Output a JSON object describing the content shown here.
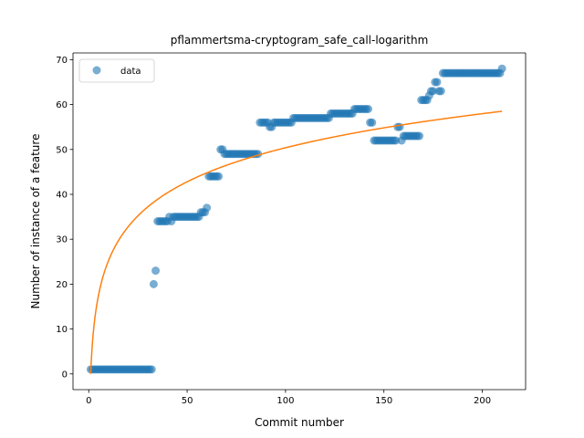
{
  "chart_data": {
    "type": "scatter",
    "title": "pflammertsma-cryptogram_safe_call-logarithm",
    "xlabel": "Commit number",
    "ylabel": "Number of instance of a feature",
    "xlim": [
      -8,
      222
    ],
    "ylim": [
      -3.5,
      71.5
    ],
    "xticks": [
      0,
      50,
      100,
      150,
      200
    ],
    "yticks": [
      0,
      10,
      20,
      30,
      40,
      50,
      60,
      70
    ],
    "grid": false,
    "legend": {
      "placement": "top-left",
      "entries": [
        "data"
      ]
    },
    "colors": {
      "data": "#1f77b4",
      "fit": "#ff7f0e"
    },
    "series": [
      {
        "name": "data",
        "kind": "scatter",
        "segments": [
          {
            "x_start": 1,
            "x_end": 32,
            "y": 1
          },
          {
            "x_start": 33,
            "x_end": 33,
            "y": 20
          },
          {
            "x_start": 34,
            "x_end": 34,
            "y": 23
          },
          {
            "x_start": 35,
            "x_end": 40,
            "y": 34
          },
          {
            "x_start": 41,
            "x_end": 41,
            "y": 35
          },
          {
            "x_start": 42,
            "x_end": 42,
            "y": 34
          },
          {
            "x_start": 43,
            "x_end": 56,
            "y": 35
          },
          {
            "x_start": 57,
            "x_end": 59,
            "y": 36
          },
          {
            "x_start": 60,
            "x_end": 60,
            "y": 37
          },
          {
            "x_start": 61,
            "x_end": 66,
            "y": 44
          },
          {
            "x_start": 67,
            "x_end": 68,
            "y": 50
          },
          {
            "x_start": 69,
            "x_end": 86,
            "y": 49
          },
          {
            "x_start": 87,
            "x_end": 91,
            "y": 56
          },
          {
            "x_start": 92,
            "x_end": 93,
            "y": 55
          },
          {
            "x_start": 94,
            "x_end": 103,
            "y": 56
          },
          {
            "x_start": 104,
            "x_end": 122,
            "y": 57
          },
          {
            "x_start": 123,
            "x_end": 134,
            "y": 58
          },
          {
            "x_start": 135,
            "x_end": 142,
            "y": 59
          },
          {
            "x_start": 143,
            "x_end": 144,
            "y": 56
          },
          {
            "x_start": 145,
            "x_end": 156,
            "y": 52
          },
          {
            "x_start": 157,
            "x_end": 158,
            "y": 55
          },
          {
            "x_start": 159,
            "x_end": 159,
            "y": 52
          },
          {
            "x_start": 160,
            "x_end": 168,
            "y": 53
          },
          {
            "x_start": 169,
            "x_end": 172,
            "y": 61
          },
          {
            "x_start": 173,
            "x_end": 173,
            "y": 62
          },
          {
            "x_start": 174,
            "x_end": 175,
            "y": 63
          },
          {
            "x_start": 176,
            "x_end": 177,
            "y": 65
          },
          {
            "x_start": 178,
            "x_end": 179,
            "y": 63
          },
          {
            "x_start": 180,
            "x_end": 209,
            "y": 67
          },
          {
            "x_start": 210,
            "x_end": 210,
            "y": 68
          }
        ]
      },
      {
        "kind": "line",
        "model": "logarithmic",
        "a": 10.94,
        "b": 0,
        "x_range": [
          1,
          210
        ]
      }
    ]
  }
}
